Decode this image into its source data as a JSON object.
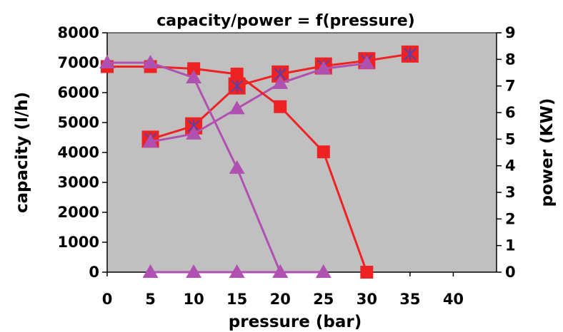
{
  "chart_data": {
    "type": "line",
    "title": "capacity/power = f(pressure)",
    "xlabel": "pressure (bar)",
    "ylabel": "capacity (l/h)",
    "y2label": "power (KW)",
    "xlim": [
      0,
      45
    ],
    "ylim": [
      0,
      8000
    ],
    "y2lim": [
      0,
      9
    ],
    "xticks": [
      "0",
      "5",
      "10",
      "15",
      "20",
      "25",
      "30",
      "35",
      "40"
    ],
    "yticks": [
      "0",
      "1000",
      "2000",
      "3000",
      "4000",
      "5000",
      "6000",
      "7000",
      "8000"
    ],
    "y2ticks": [
      "0",
      "1",
      "2",
      "3",
      "4",
      "5",
      "6",
      "7",
      "8",
      "9"
    ],
    "plot_background": "#c0c0c0",
    "grid": false,
    "series": [
      {
        "axis": "right",
        "marker": "square-x",
        "color": "#ee2222",
        "x": [
          5,
          10,
          15,
          20,
          25,
          30,
          35
        ],
        "values": [
          5.0,
          5.5,
          7.0,
          7.45,
          7.75,
          7.95,
          8.2
        ]
      },
      {
        "axis": "right",
        "marker": "triangle",
        "color": "#b050b0",
        "x": [
          5,
          10,
          15,
          20,
          25,
          30
        ],
        "values": [
          4.9,
          5.2,
          6.15,
          7.1,
          7.65,
          7.85
        ]
      },
      {
        "axis": "left",
        "marker": "square",
        "color": "#ee2222",
        "x": [
          0,
          5,
          10,
          15,
          20,
          25,
          30
        ],
        "values": [
          6870,
          6870,
          6800,
          6620,
          5530,
          4020,
          0
        ]
      },
      {
        "axis": "left",
        "marker": "triangle",
        "color": "#b050b0",
        "x": [
          0,
          5,
          10,
          15,
          20
        ],
        "values": [
          7000,
          7000,
          6500,
          3480,
          0
        ]
      },
      {
        "axis": "left",
        "marker": "triangle",
        "color": "#b050b0",
        "x": [
          5,
          10,
          15,
          20,
          25
        ],
        "values": [
          0,
          0,
          0,
          0,
          0
        ]
      }
    ]
  }
}
